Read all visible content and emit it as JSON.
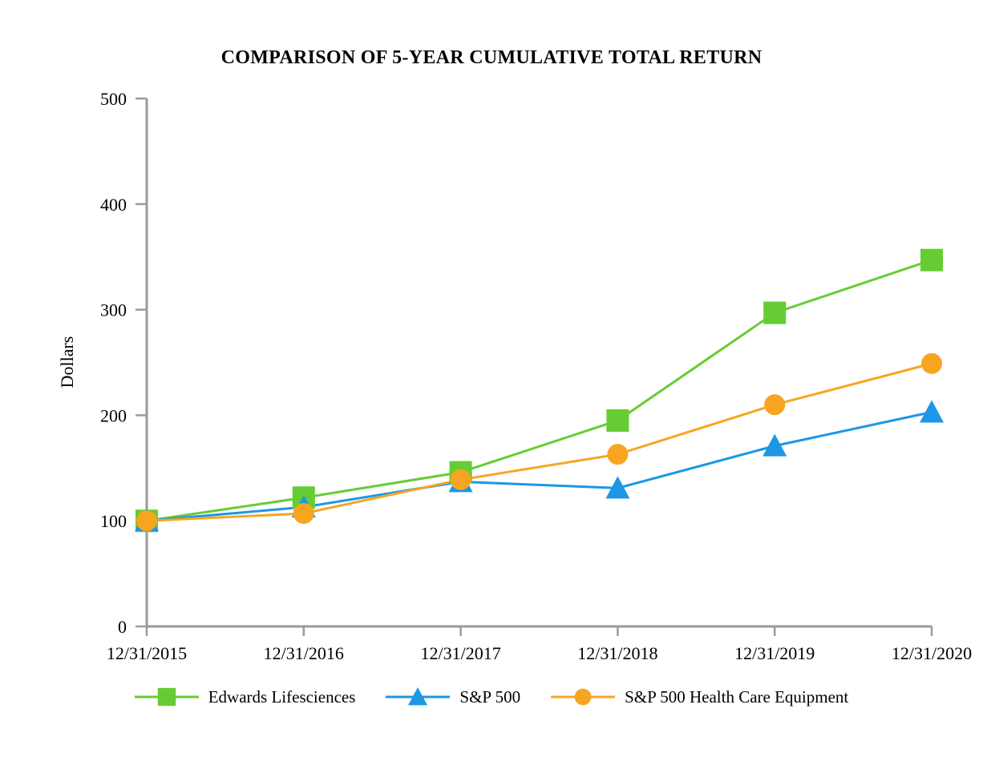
{
  "chart_data": {
    "type": "line",
    "title": "COMPARISON OF 5-YEAR CUMULATIVE TOTAL RETURN",
    "xlabel": "",
    "ylabel": "Dollars",
    "ylim": [
      0,
      500
    ],
    "yticks": [
      0,
      100,
      200,
      300,
      400,
      500
    ],
    "categories": [
      "12/31/2015",
      "12/31/2016",
      "12/31/2017",
      "12/31/2018",
      "12/31/2019",
      "12/31/2020"
    ],
    "grid": false,
    "legend_position": "bottom",
    "axis_color": "#9a9a9a",
    "text_color": "#000000",
    "series": [
      {
        "name": "Edwards Lifesciences",
        "marker": "square",
        "color": "#66cc33",
        "values": [
          100,
          122,
          146,
          195,
          297,
          347
        ]
      },
      {
        "name": "S&P 500",
        "marker": "triangle",
        "color": "#1b97e5",
        "values": [
          100,
          113,
          137,
          131,
          171,
          203
        ]
      },
      {
        "name": "S&P 500 Health Care Equipment",
        "marker": "circle",
        "color": "#f7a521",
        "values": [
          100,
          107,
          139,
          163,
          210,
          249
        ]
      }
    ]
  }
}
